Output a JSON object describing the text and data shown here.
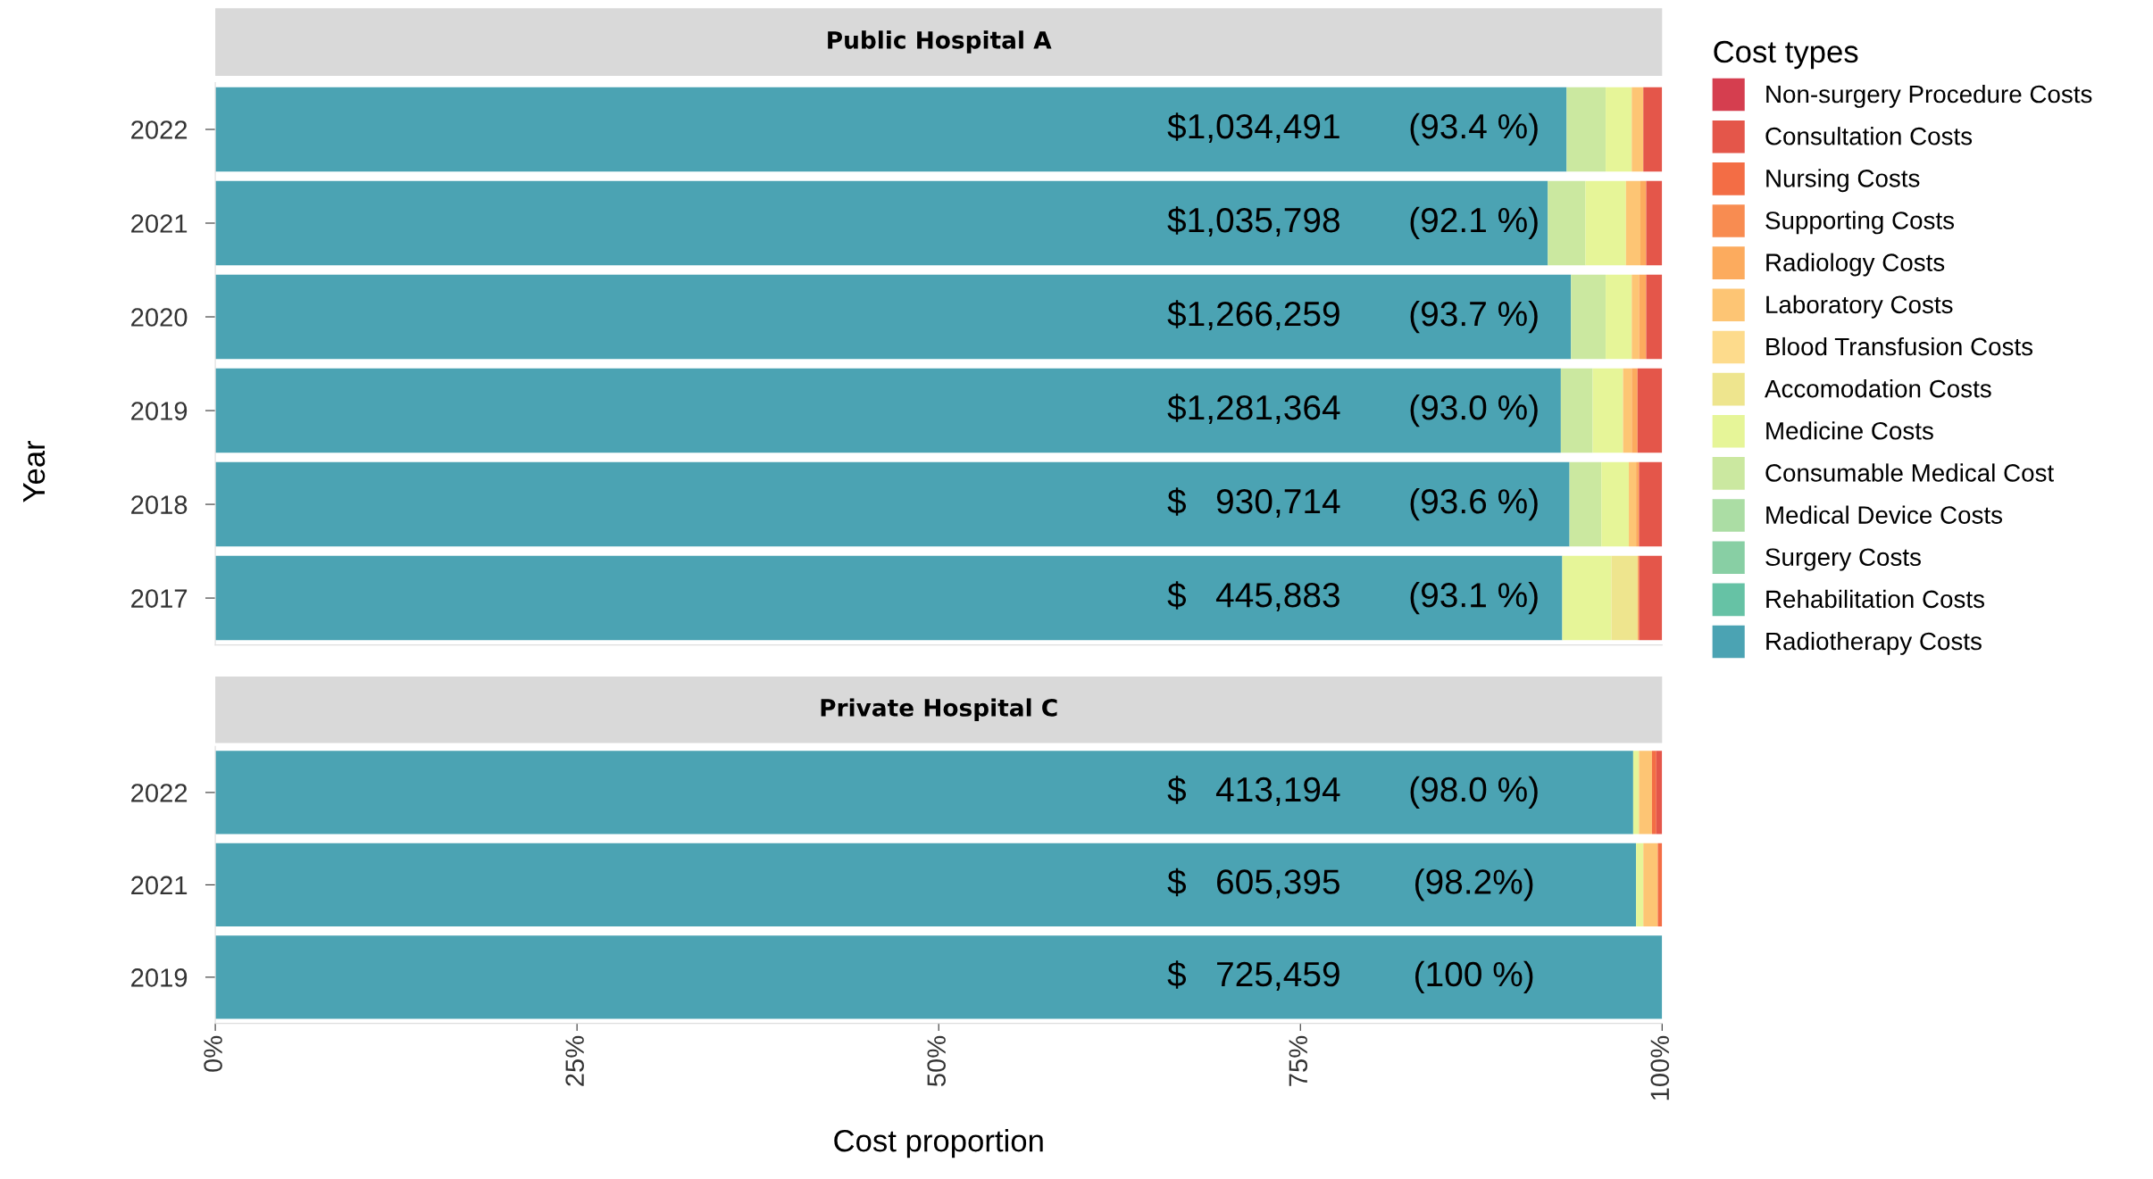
{
  "chart_data": [
    {
      "type": "bar",
      "orientation": "horizontal",
      "stacked": true,
      "title": "Public Hospital A",
      "ylabel": "Year",
      "legend_title": "Cost types",
      "legend": "right",
      "grid": false,
      "tick_labels": "y",
      "categories": [
        "2022",
        "2021",
        "2020",
        "2019",
        "2018",
        "2017"
      ],
      "xlim": [
        0,
        100
      ],
      "series": [
        {
          "name": "Radiotherapy Costs",
          "color": "#4ba3b3",
          "values": [
            93.4,
            92.1,
            93.7,
            93.0,
            93.6,
            93.1
          ],
          "value_labels": [
            "(93.4 %)",
            "(92.1 %)",
            "(93.7 %)",
            "(93.0 %)",
            "(93.6 %)",
            "(93.1 %)"
          ]
        },
        {
          "name": "Rehabilitation Costs",
          "color": "#66c2a5",
          "values": [
            null,
            null,
            null,
            null,
            null,
            null
          ]
        },
        {
          "name": "Surgery Costs",
          "color": "#88cfa4",
          "values": [
            null,
            null,
            null,
            null,
            null,
            null
          ]
        },
        {
          "name": "Medical Device Costs",
          "color": "#abdda4",
          "values": [
            null,
            null,
            null,
            null,
            null,
            null
          ]
        },
        {
          "name": "Consumable Medical Cost",
          "color": "#cbe8a0",
          "values": [
            2.7,
            2.6,
            2.4,
            2.2,
            2.2,
            null
          ]
        },
        {
          "name": "Medicine Costs",
          "color": "#e6f598",
          "values": [
            1.8,
            2.8,
            1.8,
            2.1,
            1.9,
            3.4
          ]
        },
        {
          "name": "Accomodation Costs",
          "color": "#eee58e",
          "values": [
            null,
            null,
            null,
            null,
            null,
            1.8
          ]
        },
        {
          "name": "Blood Transfusion Costs",
          "color": "#fddb8c",
          "values": [
            null,
            null,
            null,
            null,
            null,
            null
          ]
        },
        {
          "name": "Laboratory Costs",
          "color": "#fdc574",
          "values": [
            0.8,
            1.0,
            0.5,
            0.6,
            0.5,
            null
          ]
        },
        {
          "name": "Radiology Costs",
          "color": "#fcab5e",
          "values": [
            null,
            0.4,
            0.5,
            0.4,
            0.2,
            0.1
          ]
        },
        {
          "name": "Supporting Costs",
          "color": "#f88c51",
          "values": [
            null,
            null,
            null,
            null,
            null,
            null
          ]
        },
        {
          "name": "Nursing Costs",
          "color": "#f36d45",
          "values": [
            null,
            null,
            null,
            null,
            null,
            null
          ]
        },
        {
          "name": "Consultation Costs",
          "color": "#e4564a",
          "values": [
            1.3,
            1.1,
            1.1,
            1.7,
            1.6,
            1.6
          ]
        },
        {
          "name": "Non-surgery Procedure Costs",
          "color": "#d53e4f",
          "values": [
            null,
            null,
            null,
            null,
            null,
            null
          ]
        }
      ],
      "annotations": [
        {
          "text": "$1,034,491",
          "y": "2022"
        },
        {
          "text": "$1,035,798",
          "y": "2021"
        },
        {
          "text": "$1,266,259",
          "y": "2020"
        },
        {
          "text": "$1,281,364",
          "y": "2019"
        },
        {
          "text": "$   930,714",
          "y": "2018"
        },
        {
          "text": "$   445,883",
          "y": "2017"
        }
      ]
    },
    {
      "type": "bar",
      "orientation": "horizontal",
      "stacked": true,
      "title": "Private Hospital C",
      "xlabel": "Cost proportion",
      "grid": false,
      "categories": [
        "2022",
        "2021",
        "2019"
      ],
      "xlim": [
        0,
        100
      ],
      "xticks": [
        {
          "value": 0,
          "label": "0%"
        },
        {
          "value": 25,
          "label": "25%"
        },
        {
          "value": 50,
          "label": "50%"
        },
        {
          "value": 75,
          "label": "75%"
        },
        {
          "value": 100,
          "label": "100%"
        }
      ],
      "series": [
        {
          "color": "#4ba3b3",
          "values": [
            98.0,
            98.2,
            100
          ],
          "value_labels": [
            "(98.0 %)",
            "(98.2%)",
            "(100 %)"
          ]
        },
        {
          "color": "#e6f598",
          "values": [
            0.4,
            0.5,
            null
          ]
        },
        {
          "color": "#fdc574",
          "values": [
            0.9,
            1.0,
            null
          ]
        },
        {
          "color": "#f36d45",
          "values": [
            0.3,
            0.3,
            null
          ]
        },
        {
          "color": "#e4564a",
          "values": [
            0.4,
            null,
            null
          ]
        }
      ],
      "annotations": [
        {
          "text": "$   413,194",
          "y": "2022"
        },
        {
          "text": "$   605,395",
          "y": "2021"
        },
        {
          "text": "$   725,459",
          "y": "2019"
        }
      ]
    }
  ]
}
